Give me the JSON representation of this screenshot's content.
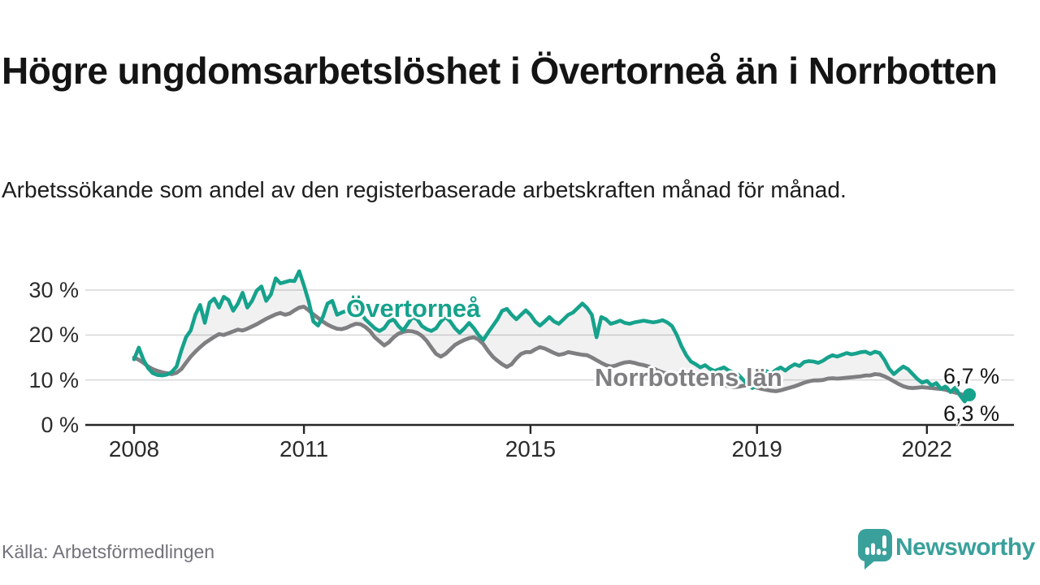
{
  "header": {
    "title": "Högre ungdomsarbetslöshet i Övertorneå än i Norrbotten",
    "subtitle": "Arbetssökande som andel av den registerbaserade arbetskraften månad för månad."
  },
  "footer": {
    "source": "Källa: Arbetsförmedlingen",
    "brand": "Newsworthy"
  },
  "colors": {
    "accent_teal": "#16a28c",
    "line_gray": "#7f7f82",
    "band_fill": "rgba(0,0,0,0.055)",
    "gridline": "#d7d7d7",
    "axis": "#262626",
    "brand_teal": "#3aa09b",
    "label_text": "#141414",
    "source_text": "#72727b"
  },
  "chart_data": {
    "type": "line",
    "title": "Högre ungdomsarbetslöshet i Övertorneå än i Norrbotten",
    "subtitle": "Arbetssökande som andel av den registerbaserade arbetskraften månad för månad.",
    "x_unit": "month",
    "x_range": "2008-01 to 2022-10",
    "ylim": [
      0,
      35
    ],
    "grid": "horizontal",
    "legend_position": "inline-labels",
    "y_ticks": [
      {
        "value": 30,
        "label": "30 %"
      },
      {
        "value": 20,
        "label": "20 %"
      },
      {
        "value": 10,
        "label": "10 %"
      },
      {
        "value": 0,
        "label": "0 %"
      }
    ],
    "x_ticks": [
      {
        "year": 2008,
        "label": "2008"
      },
      {
        "year": 2011,
        "label": "2011"
      },
      {
        "year": 2015,
        "label": "2015"
      },
      {
        "year": 2019,
        "label": "2019"
      },
      {
        "year": 2022,
        "label": "2022"
      }
    ],
    "series": [
      {
        "name": "Övertorneå",
        "color": "#16a28c",
        "end_label": "6,7 %",
        "end_value": 6.7,
        "values": [
          14.6,
          17.2,
          14.5,
          12.6,
          11.5,
          11.1,
          11.0,
          11.2,
          11.8,
          13.0,
          16.5,
          19.5,
          21.0,
          24.5,
          26.7,
          22.7,
          27.2,
          28.1,
          26.1,
          28.5,
          27.8,
          25.4,
          27.0,
          29.4,
          26.1,
          27.6,
          29.9,
          30.8,
          27.6,
          29.0,
          32.6,
          31.5,
          31.8,
          32.1,
          32.0,
          34.2,
          31.0,
          27.5,
          23.0,
          22.1,
          24.0,
          27.0,
          27.6,
          24.5,
          25.0,
          25.4,
          26.5,
          27.0,
          25.0,
          23.5,
          22.5,
          21.5,
          20.9,
          21.5,
          23.0,
          23.5,
          22.0,
          21.0,
          22.5,
          24.0,
          23.5,
          22.0,
          21.3,
          20.9,
          21.5,
          23.0,
          24.0,
          23.0,
          21.5,
          20.5,
          21.5,
          22.7,
          21.5,
          20.0,
          18.9,
          20.5,
          22.0,
          23.5,
          25.4,
          25.8,
          24.5,
          23.5,
          24.5,
          25.5,
          24.5,
          23.0,
          22.1,
          23.0,
          24.0,
          23.0,
          22.5,
          23.5,
          24.5,
          25.0,
          26.0,
          27.0,
          26.0,
          24.5,
          19.5,
          24.0,
          23.5,
          22.5,
          22.8,
          23.2,
          22.7,
          22.5,
          22.8,
          23.0,
          23.2,
          23.0,
          22.8,
          23.0,
          23.3,
          22.8,
          22.0,
          20.0,
          17.5,
          15.5,
          14.1,
          13.5,
          12.8,
          13.3,
          12.5,
          12.0,
          12.4,
          12.8,
          12.1,
          11.7,
          11.2,
          10.1,
          9.0,
          8.2,
          8.8,
          10.5,
          12.0,
          11.4,
          12.2,
          12.8,
          12.1,
          12.9,
          13.5,
          13.1,
          14.0,
          14.2,
          14.1,
          13.8,
          14.3,
          15.0,
          15.5,
          15.2,
          15.6,
          16.0,
          15.7,
          15.9,
          16.2,
          16.3,
          15.8,
          16.3,
          16.0,
          14.5,
          12.5,
          11.3,
          12.2,
          13.0,
          12.4,
          11.3,
          10.2,
          9.4,
          9.8,
          8.8,
          9.3,
          8.0,
          8.6,
          7.3,
          8.3,
          6.6,
          5.2,
          6.7
        ]
      },
      {
        "name": "Norrbottens län",
        "color": "#7f7f82",
        "end_label": "6,3 %",
        "end_value": 6.3,
        "values": [
          15.0,
          14.5,
          13.8,
          13.0,
          12.4,
          12.0,
          11.7,
          11.5,
          11.3,
          11.6,
          12.4,
          13.8,
          15.2,
          16.3,
          17.3,
          18.2,
          18.9,
          19.6,
          20.2,
          20.0,
          20.4,
          20.8,
          21.2,
          21.0,
          21.4,
          21.9,
          22.4,
          23.0,
          23.6,
          24.1,
          24.6,
          24.9,
          24.5,
          24.8,
          25.5,
          26.1,
          26.3,
          25.5,
          24.6,
          23.8,
          23.0,
          22.3,
          21.8,
          21.4,
          21.3,
          21.6,
          22.1,
          22.5,
          22.4,
          21.8,
          20.9,
          19.5,
          18.6,
          17.7,
          18.4,
          19.5,
          20.3,
          20.7,
          20.9,
          20.8,
          20.5,
          19.8,
          18.7,
          17.2,
          15.8,
          15.2,
          15.8,
          16.8,
          17.8,
          18.4,
          18.9,
          19.3,
          19.5,
          19.0,
          18.0,
          16.5,
          15.2,
          14.3,
          13.5,
          12.9,
          13.5,
          14.8,
          15.8,
          16.2,
          16.2,
          16.8,
          17.3,
          17.0,
          16.5,
          16.0,
          15.6,
          15.8,
          16.2,
          16.0,
          15.8,
          15.6,
          15.5,
          15.0,
          14.4,
          13.8,
          13.3,
          13.0,
          13.2,
          13.6,
          13.9,
          14.0,
          13.8,
          13.5,
          13.3,
          13.0,
          12.6,
          12.1,
          11.7,
          11.4,
          11.2,
          11.0,
          10.8,
          10.9,
          11.0,
          10.9,
          10.7,
          10.4,
          10.0,
          9.6,
          9.2,
          8.9,
          8.6,
          8.4,
          8.5,
          8.7,
          8.8,
          8.6,
          8.3,
          8.0,
          7.8,
          7.6,
          7.5,
          7.7,
          8.0,
          8.3,
          8.6,
          9.0,
          9.4,
          9.7,
          9.9,
          9.9,
          10.0,
          10.3,
          10.4,
          10.3,
          10.4,
          10.5,
          10.6,
          10.7,
          10.8,
          11.0,
          11.0,
          11.3,
          11.2,
          10.8,
          10.3,
          9.7,
          9.1,
          8.6,
          8.3,
          8.2,
          8.3,
          8.4,
          8.3,
          8.2,
          8.1,
          8.0,
          7.8,
          7.5,
          7.2,
          6.9,
          6.6,
          6.3
        ]
      }
    ]
  }
}
